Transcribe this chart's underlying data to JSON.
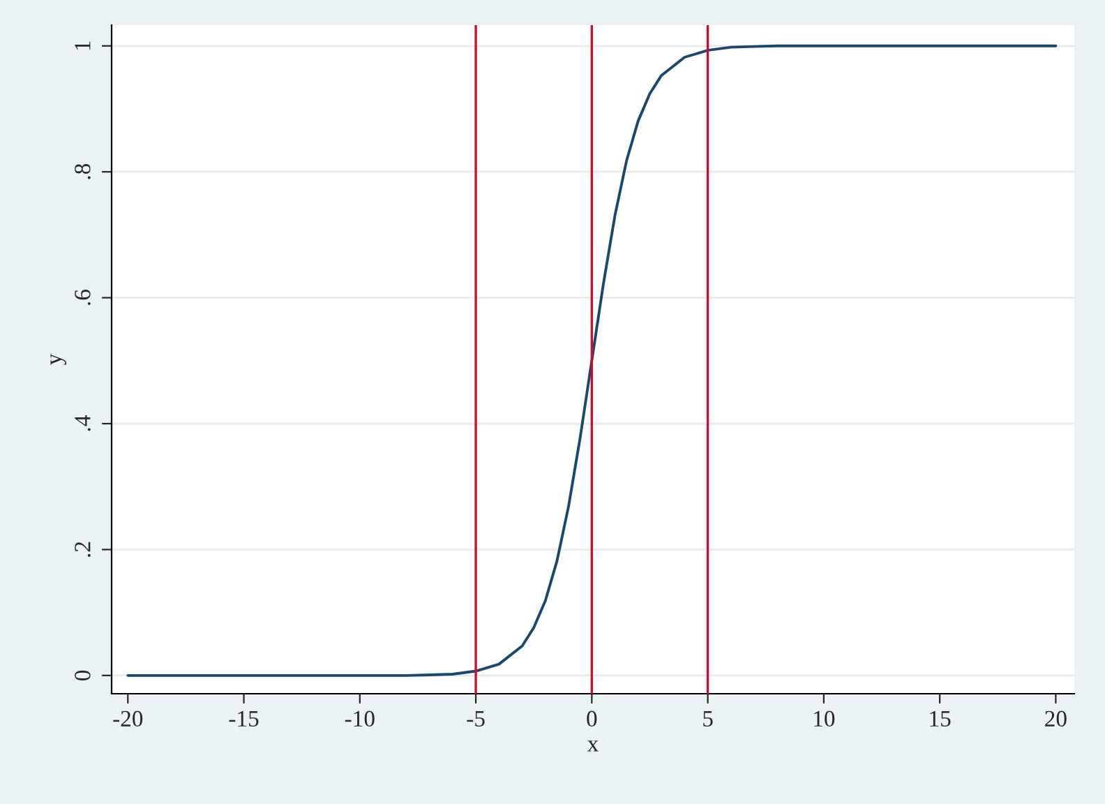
{
  "chart_data": {
    "type": "line",
    "xlabel": "x",
    "ylabel": "y",
    "x": [
      -20,
      -10,
      -8,
      -7,
      -6,
      -5,
      -4,
      -3,
      -2.5,
      -2,
      -1.5,
      -1,
      -0.5,
      0,
      0.5,
      1,
      1.5,
      2,
      2.5,
      3,
      4,
      5,
      6,
      7,
      8,
      10,
      20
    ],
    "series": [
      {
        "color": "#1a476f",
        "values": [
          0,
          0,
          0,
          0.001,
          0.002,
          0.007,
          0.018,
          0.047,
          0.076,
          0.119,
          0.182,
          0.269,
          0.378,
          0.5,
          0.622,
          0.731,
          0.818,
          0.881,
          0.924,
          0.953,
          0.982,
          0.993,
          0.998,
          0.999,
          1,
          1,
          1
        ]
      }
    ],
    "xlim": [
      -20.7,
      20.8
    ],
    "ylim": [
      -0.029,
      1.033
    ],
    "xticks": [
      -20,
      -15,
      -10,
      -5,
      0,
      5,
      10,
      15,
      20
    ],
    "yticks": [
      0,
      {
        "value": 0.2,
        "label": ".2"
      },
      {
        "value": 0.4,
        "label": ".4"
      },
      {
        "value": 0.6,
        "label": ".6"
      },
      {
        "value": 0.8,
        "label": ".8"
      },
      1
    ],
    "ref_lines": [
      {
        "axis": "x",
        "value": -5,
        "color": "#c8102e"
      },
      {
        "axis": "x",
        "value": 0,
        "color": "#c8102e"
      },
      {
        "axis": "x",
        "value": 5,
        "color": "#c8102e"
      }
    ],
    "grid": "y",
    "marker": "none",
    "line_style": "solid",
    "legend": false
  }
}
